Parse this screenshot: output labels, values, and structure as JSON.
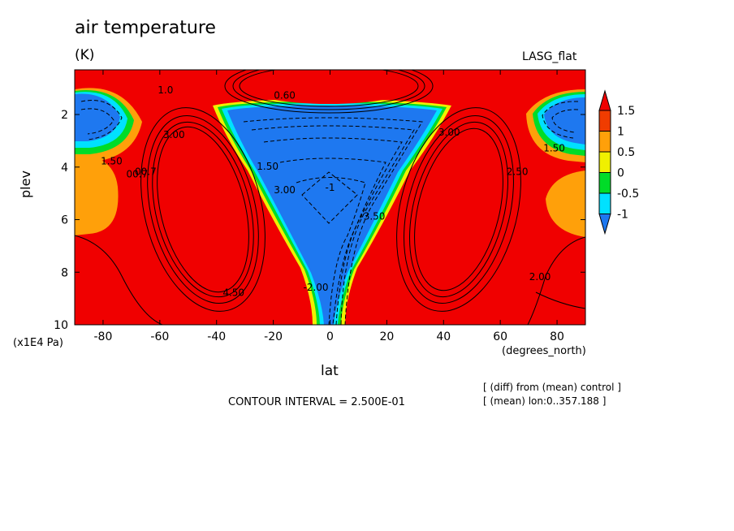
{
  "title": "air temperature",
  "units": "(K)",
  "run_name": "LASG_flat",
  "y_axis": {
    "label": "plev",
    "units": "(x1E4 Pa)"
  },
  "x_axis": {
    "label": "lat",
    "units": "(degrees_north)"
  },
  "contour_interval": "CONTOUR INTERVAL = 2.500E-01",
  "notes": [
    "[ (diff) from (mean) control ]",
    "[ (mean) lon:0..357.188 ]"
  ],
  "colors": {
    "le_-1": "#1e78f0",
    "-1_-0.5": "#00e1ff",
    "-0.5_0": "#00dc28",
    "0_0.5": "#f0f000",
    "0.5_1": "#ffa00a",
    "1_1.5": "#f03c00",
    "ge_1.5": "#f00000"
  },
  "chart_data": {
    "type": "heatmap",
    "title": "air temperature",
    "units": "(K)",
    "xlabel": "lat",
    "xlabel_units": "(degrees_north)",
    "ylabel": "plev",
    "ylabel_units": "(x1E4 Pa)",
    "xlim": [
      -90,
      90
    ],
    "ylim": [
      10,
      0.3
    ],
    "x_ticks": [
      -80,
      -60,
      -40,
      -20,
      0,
      20,
      40,
      60,
      80
    ],
    "y_ticks": [
      2,
      4,
      6,
      8,
      10
    ],
    "colorbar": {
      "levels": [
        -1,
        -0.5,
        0,
        0.5,
        1,
        1.5
      ],
      "labels": [
        "1.5",
        "1",
        "0.5",
        "0",
        "-0.5",
        "-1"
      ]
    },
    "contour_labels": [
      {
        "text": "1.50",
        "x": -77,
        "y": 3.9
      },
      {
        "text": "00.7",
        "x": -68,
        "y": 4.4
      },
      {
        "text": "00.7",
        "x": -65,
        "y": 4.3
      },
      {
        "text": "3.00",
        "x": -55,
        "y": 2.9
      },
      {
        "text": "1.0",
        "x": -58,
        "y": 1.2
      },
      {
        "text": "1.50",
        "x": -22,
        "y": 4.1
      },
      {
        "text": "3.00",
        "x": -16,
        "y": 5.0
      },
      {
        "text": "0.60",
        "x": -16,
        "y": 1.4
      },
      {
        "text": "-1",
        "x": 0,
        "y": 4.9
      },
      {
        "text": "-3.50",
        "x": 15,
        "y": 6.0
      },
      {
        "text": "-2.00",
        "x": -5,
        "y": 8.7
      },
      {
        "text": "3.00",
        "x": 42,
        "y": 2.8
      },
      {
        "text": "2.50",
        "x": 66,
        "y": 4.3
      },
      {
        "text": "1.50",
        "x": 79,
        "y": 3.4
      },
      {
        "text": "2.00",
        "x": 74,
        "y": 8.3
      },
      {
        "text": "4.50",
        "x": -34,
        "y": 8.9
      }
    ]
  }
}
